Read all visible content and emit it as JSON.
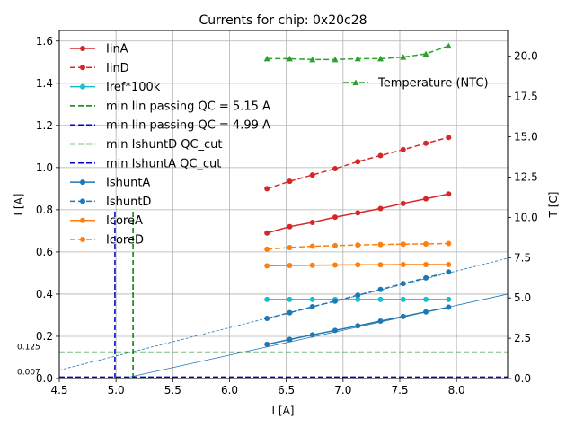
{
  "chart_data": {
    "type": "line",
    "title": "Currents for chip: 0x20c28",
    "xlabel": "I [A]",
    "ylabel": "I [A]",
    "y2label": "T [C]",
    "xlim": [
      4.5,
      8.45
    ],
    "ylim": [
      0.0,
      1.65
    ],
    "y2lim": [
      0.0,
      21.6
    ],
    "grid": true,
    "xticks": [
      "4.5",
      "5.0",
      "5.5",
      "6.0",
      "6.5",
      "7.0",
      "7.5",
      "8.0"
    ],
    "xtick_values": [
      4.5,
      5.0,
      5.5,
      6.0,
      6.5,
      7.0,
      7.5,
      8.0
    ],
    "yticks": [
      "0.0",
      "0.2",
      "0.4",
      "0.6",
      "0.8",
      "1.0",
      "1.2",
      "1.4",
      "1.6"
    ],
    "ytick_values": [
      0.0,
      0.2,
      0.4,
      0.6,
      0.8,
      1.0,
      1.2,
      1.4,
      1.6
    ],
    "y2ticks": [
      "0.0",
      "2.5",
      "5.0",
      "7.5",
      "10.0",
      "12.5",
      "15.0",
      "17.5",
      "20.0"
    ],
    "y2tick_values": [
      0.0,
      2.5,
      5.0,
      7.5,
      10.0,
      12.5,
      15.0,
      17.5,
      20.0
    ],
    "x": [
      6.33,
      6.53,
      6.73,
      6.93,
      7.13,
      7.33,
      7.53,
      7.73,
      7.93
    ],
    "series": [
      {
        "name": "IinA",
        "color": "#d62728",
        "dash": false,
        "marker": "o",
        "values": [
          0.69,
          0.72,
          0.74,
          0.765,
          0.785,
          0.806,
          0.83,
          0.852,
          0.875
        ]
      },
      {
        "name": "IinD",
        "color": "#d62728",
        "dash": true,
        "marker": "o",
        "values": [
          0.9,
          0.935,
          0.965,
          0.995,
          1.028,
          1.057,
          1.085,
          1.115,
          1.143
        ]
      },
      {
        "name": "Iref*100k",
        "color": "#17becf",
        "dash": false,
        "marker": "o",
        "values": [
          0.375,
          0.375,
          0.375,
          0.375,
          0.375,
          0.375,
          0.375,
          0.375,
          0.375
        ]
      },
      {
        "name": "IshuntA",
        "color": "#1f77b4",
        "dash": false,
        "marker": "o",
        "values": [
          0.162,
          0.185,
          0.207,
          0.228,
          0.25,
          0.272,
          0.294,
          0.316,
          0.338
        ]
      },
      {
        "name": "IshuntD",
        "color": "#1f77b4",
        "dash": true,
        "marker": "o",
        "values": [
          0.285,
          0.312,
          0.34,
          0.367,
          0.395,
          0.422,
          0.45,
          0.477,
          0.505
        ]
      },
      {
        "name": "IcoreA",
        "color": "#ff7f0e",
        "dash": false,
        "marker": "o",
        "values": [
          0.534,
          0.536,
          0.537,
          0.538,
          0.539,
          0.539,
          0.54,
          0.54,
          0.54
        ]
      },
      {
        "name": "IcoreD",
        "color": "#ff7f0e",
        "dash": true,
        "marker": "o",
        "values": [
          0.613,
          0.621,
          0.627,
          0.63,
          0.633,
          0.635,
          0.637,
          0.638,
          0.64
        ]
      }
    ],
    "temperature_series": {
      "name": "Temperature (NTC)",
      "color": "#2ca02c",
      "axis": "right",
      "values": [
        19.85,
        19.85,
        19.8,
        19.8,
        19.85,
        19.85,
        19.95,
        20.15,
        20.65
      ]
    },
    "reference_lines": [
      {
        "name": "min Iin passing QC = 5.15 A",
        "color": "#008000",
        "orientation": "vertical",
        "x": 5.15,
        "ymax": 0.8
      },
      {
        "name": "min Iin passing QC = 4.99 A",
        "color": "#0000cd",
        "orientation": "vertical",
        "x": 4.99,
        "ymax": 0.8
      },
      {
        "name": "min IshuntD QC_cut",
        "color": "#008000",
        "orientation": "horizontal",
        "y": 0.125
      },
      {
        "name": "min IshuntA QC_cut",
        "color": "#0000cd",
        "orientation": "horizontal",
        "y": 0.007
      }
    ],
    "fit_lines": [
      {
        "color": "#1f77b4",
        "dash": true,
        "x": [
          4.5,
          8.45
        ],
        "y": [
          0.04,
          0.57
        ]
      },
      {
        "color": "#1f77b4",
        "dash": false,
        "x": [
          5.06,
          8.45
        ],
        "y": [
          0.0,
          0.4
        ]
      }
    ],
    "annotations": [
      {
        "text": "0.125",
        "y": 0.125
      },
      {
        "text": "0.007",
        "y": 0.007
      }
    ],
    "legend_position": "upper-left",
    "legend2_position": "upper-right"
  }
}
